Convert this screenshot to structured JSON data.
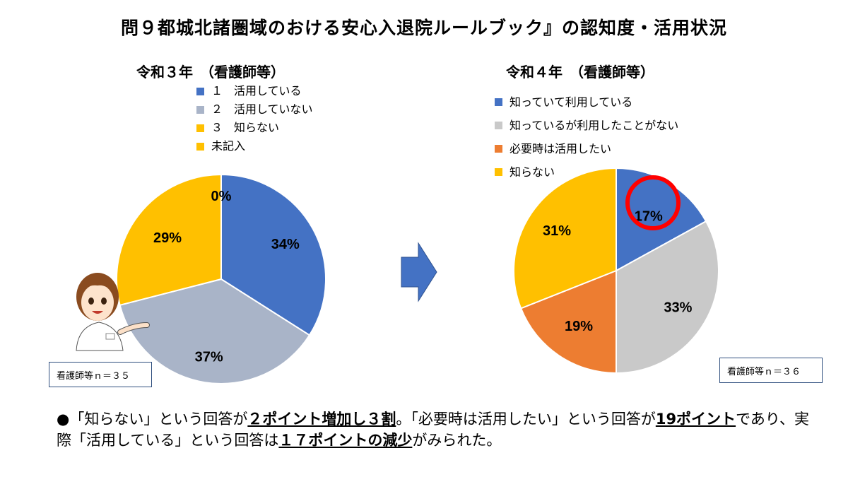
{
  "title": "問９都城北諸圏域のおける安心入退院ルールブック』の認知度・活用状況",
  "chart_data": [
    {
      "type": "pie",
      "title": "令和３年　（看護師等）",
      "n_label": "看護師等ｎ＝３５",
      "categories": [
        "１　活用している",
        "２　活用していない",
        "３　知らない",
        "未記入"
      ],
      "values": [
        34,
        37,
        29,
        0
      ],
      "labels": [
        "34%",
        "37%",
        "29%",
        "0%"
      ],
      "colors": [
        "#4472c4",
        "#a9b4c8",
        "#ffc000",
        "#ffc000"
      ],
      "legend": "top"
    },
    {
      "type": "pie",
      "title": "令和４年　（看護師等）",
      "n_label": "看護師等ｎ＝３６",
      "categories": [
        "知っていて利用している",
        "知っているが利用したことがない",
        "必要時は活用したい",
        "知らない"
      ],
      "values": [
        17,
        33,
        19,
        31
      ],
      "labels": [
        "17%",
        "33%",
        "19%",
        "31%"
      ],
      "colors": [
        "#4472c4",
        "#c9c9c9",
        "#ed7d31",
        "#ffc000"
      ],
      "legend": "top-left",
      "highlight": "17%"
    }
  ],
  "note": {
    "p1": "●「知らない」という回答が",
    "b1": "２ポイント増加し３割",
    "p2": "。「必要時は活用したい」という回答が",
    "b2": "19ポイント",
    "p3": "であり、実際「活用している」という回答は",
    "b3": "１７ポイントの減少",
    "p4": "がみられた。"
  }
}
